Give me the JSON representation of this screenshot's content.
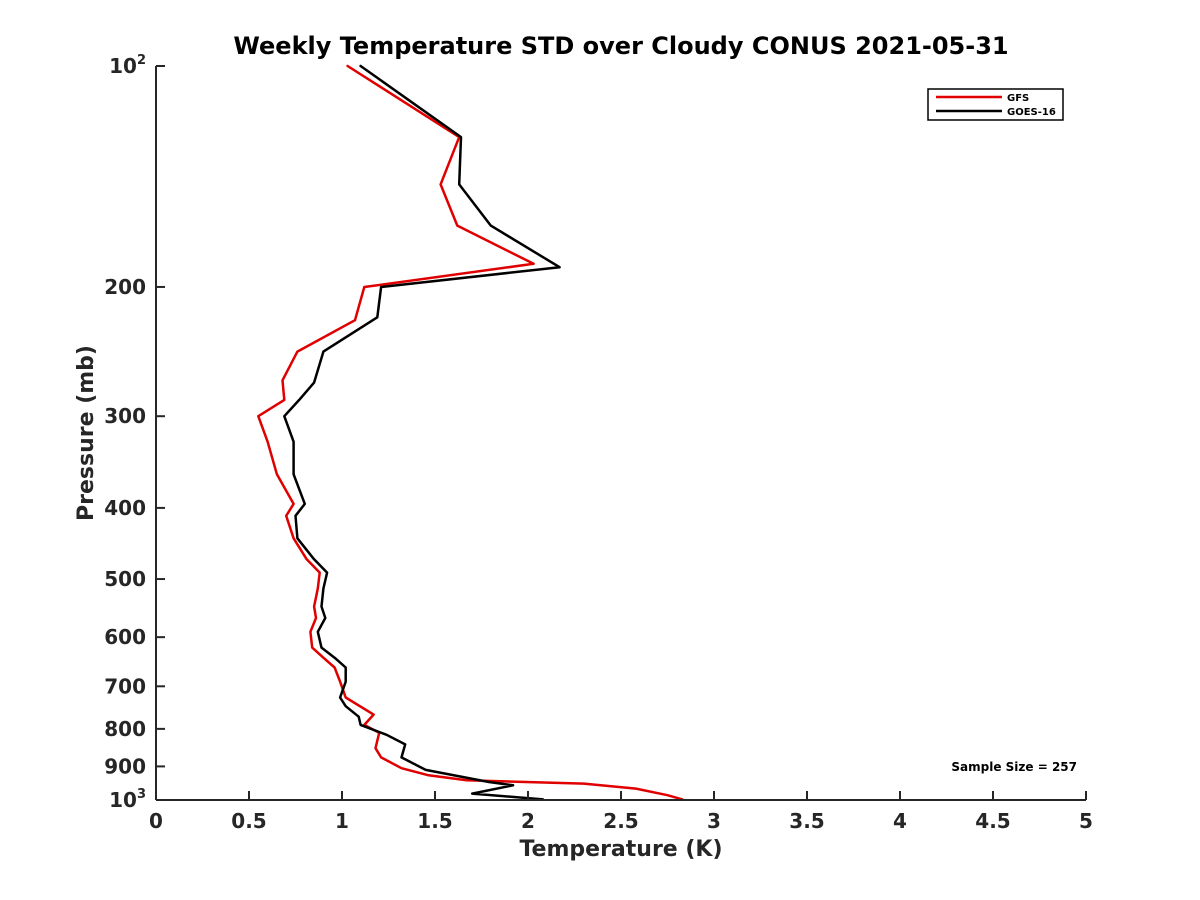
{
  "chart_data": {
    "type": "line",
    "title": "Weekly Temperature STD over Cloudy CONUS 2021-05-31",
    "xlabel": "Temperature (K)",
    "ylabel": "Pressure (mb)",
    "xlim": [
      0,
      5
    ],
    "ylim": [
      100,
      1000
    ],
    "y_scale": "log",
    "y_reversed": true,
    "x_ticks": [
      "0",
      "0.5",
      "1",
      "1.5",
      "2",
      "2.5",
      "3",
      "3.5",
      "4",
      "4.5",
      "5"
    ],
    "y_ticks": [
      {
        "value": 100,
        "base": "10",
        "exp": "2"
      },
      {
        "value": 200,
        "label": "200"
      },
      {
        "value": 300,
        "label": "300"
      },
      {
        "value": 400,
        "label": "400"
      },
      {
        "value": 500,
        "label": "500"
      },
      {
        "value": 600,
        "label": "600"
      },
      {
        "value": 700,
        "label": "700"
      },
      {
        "value": 800,
        "label": "800"
      },
      {
        "value": 900,
        "label": "900"
      },
      {
        "value": 1000,
        "base": "10",
        "exp": "3"
      }
    ],
    "grid": false,
    "legend_position": "top-right",
    "annotation": "Sample Size = 257",
    "series": [
      {
        "name": "GFS",
        "color": "#e00000",
        "points": [
          [
            1.03,
            100
          ],
          [
            1.63,
            125
          ],
          [
            1.53,
            145
          ],
          [
            1.62,
            165
          ],
          [
            2.03,
            186
          ],
          [
            1.12,
            200
          ],
          [
            1.07,
            222
          ],
          [
            0.76,
            245
          ],
          [
            0.68,
            268
          ],
          [
            0.69,
            285
          ],
          [
            0.55,
            300
          ],
          [
            0.6,
            325
          ],
          [
            0.65,
            360
          ],
          [
            0.74,
            395
          ],
          [
            0.7,
            410
          ],
          [
            0.74,
            440
          ],
          [
            0.81,
            470
          ],
          [
            0.88,
            490
          ],
          [
            0.87,
            515
          ],
          [
            0.85,
            545
          ],
          [
            0.86,
            565
          ],
          [
            0.83,
            590
          ],
          [
            0.84,
            620
          ],
          [
            0.9,
            640
          ],
          [
            0.96,
            660
          ],
          [
            0.99,
            690
          ],
          [
            1.02,
            725
          ],
          [
            1.17,
            765
          ],
          [
            1.12,
            790
          ],
          [
            1.2,
            810
          ],
          [
            1.18,
            850
          ],
          [
            1.21,
            875
          ],
          [
            1.32,
            905
          ],
          [
            1.46,
            925
          ],
          [
            1.67,
            940
          ],
          [
            2.3,
            950
          ],
          [
            2.58,
            965
          ],
          [
            2.75,
            985
          ],
          [
            2.83,
            998
          ]
        ]
      },
      {
        "name": "GOES-16",
        "color": "#000000",
        "points": [
          [
            1.1,
            100
          ],
          [
            1.64,
            125
          ],
          [
            1.63,
            145
          ],
          [
            1.8,
            165
          ],
          [
            2.17,
            188
          ],
          [
            1.21,
            200
          ],
          [
            1.19,
            220
          ],
          [
            0.9,
            245
          ],
          [
            0.85,
            270
          ],
          [
            0.77,
            285
          ],
          [
            0.69,
            300
          ],
          [
            0.74,
            325
          ],
          [
            0.74,
            360
          ],
          [
            0.8,
            395
          ],
          [
            0.75,
            410
          ],
          [
            0.76,
            440
          ],
          [
            0.85,
            470
          ],
          [
            0.92,
            490
          ],
          [
            0.9,
            515
          ],
          [
            0.89,
            545
          ],
          [
            0.91,
            565
          ],
          [
            0.87,
            590
          ],
          [
            0.89,
            620
          ],
          [
            0.96,
            640
          ],
          [
            1.02,
            660
          ],
          [
            1.02,
            690
          ],
          [
            0.99,
            725
          ],
          [
            1.02,
            745
          ],
          [
            1.09,
            770
          ],
          [
            1.1,
            790
          ],
          [
            1.24,
            815
          ],
          [
            1.34,
            840
          ],
          [
            1.32,
            875
          ],
          [
            1.45,
            910
          ],
          [
            1.79,
            945
          ],
          [
            1.92,
            955
          ],
          [
            1.7,
            980
          ],
          [
            2.08,
            998
          ]
        ]
      }
    ]
  }
}
